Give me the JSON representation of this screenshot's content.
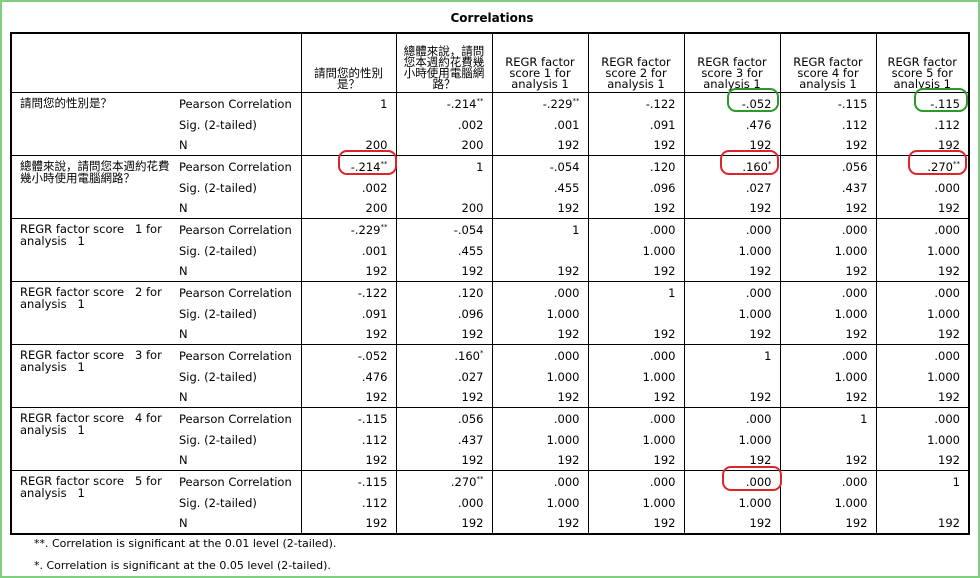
{
  "title": "Correlations",
  "table": {
    "columns": [
      "請問您的性別是？",
      "總體來說，請問您本週約花費幾小時使用電腦網路？",
      "REGR factor score   1 for analysis   1",
      "REGR factor score   2 for analysis   1",
      "REGR factor score   3 for analysis   1",
      "REGR factor score   4 for analysis   1",
      "REGR factor score   5 for analysis   1"
    ],
    "groups": [
      {
        "label": "請問您的性別是？",
        "rows": [
          {
            "stat": "Pearson Correlation",
            "cells": [
              "1",
              {
                "value": "-.214",
                "flag": "**"
              },
              {
                "value": "-.229",
                "flag": "**"
              },
              "-.122",
              "-.052",
              "-.115",
              "-.115"
            ]
          },
          {
            "stat": "Sig. (2-tailed)",
            "cells": [
              null,
              ".002",
              ".001",
              ".091",
              ".476",
              ".112",
              ".112"
            ]
          },
          {
            "stat": "N",
            "cells": [
              "200",
              "200",
              "192",
              "192",
              "192",
              "192",
              "192"
            ]
          }
        ]
      },
      {
        "label": "總體來說，請問您本週約花費幾小時使用電腦網路？",
        "rows": [
          {
            "stat": "Pearson Correlation",
            "cells": [
              {
                "value": "-.214",
                "flag": "**"
              },
              "1",
              "-.054",
              ".120",
              {
                "value": ".160",
                "flag": "*"
              },
              ".056",
              {
                "value": ".270",
                "flag": "**"
              }
            ]
          },
          {
            "stat": "Sig. (2-tailed)",
            "cells": [
              ".002",
              null,
              ".455",
              ".096",
              ".027",
              ".437",
              ".000"
            ]
          },
          {
            "stat": "N",
            "cells": [
              "200",
              "200",
              "192",
              "192",
              "192",
              "192",
              "192"
            ]
          }
        ]
      },
      {
        "label": "REGR factor score   1 for analysis   1",
        "rows": [
          {
            "stat": "Pearson Correlation",
            "cells": [
              {
                "value": "-.229",
                "flag": "**"
              },
              "-.054",
              "1",
              ".000",
              ".000",
              ".000",
              ".000"
            ]
          },
          {
            "stat": "Sig. (2-tailed)",
            "cells": [
              ".001",
              ".455",
              null,
              "1.000",
              "1.000",
              "1.000",
              "1.000"
            ]
          },
          {
            "stat": "N",
            "cells": [
              "192",
              "192",
              "192",
              "192",
              "192",
              "192",
              "192"
            ]
          }
        ]
      },
      {
        "label": "REGR factor score   2 for analysis   1",
        "rows": [
          {
            "stat": "Pearson Correlation",
            "cells": [
              "-.122",
              ".120",
              ".000",
              "1",
              ".000",
              ".000",
              ".000"
            ]
          },
          {
            "stat": "Sig. (2-tailed)",
            "cells": [
              ".091",
              ".096",
              "1.000",
              null,
              "1.000",
              "1.000",
              "1.000"
            ]
          },
          {
            "stat": "N",
            "cells": [
              "192",
              "192",
              "192",
              "192",
              "192",
              "192",
              "192"
            ]
          }
        ]
      },
      {
        "label": "REGR factor score   3 for analysis   1",
        "rows": [
          {
            "stat": "Pearson Correlation",
            "cells": [
              "-.052",
              {
                "value": ".160",
                "flag": "*"
              },
              ".000",
              ".000",
              "1",
              ".000",
              ".000"
            ]
          },
          {
            "stat": "Sig. (2-tailed)",
            "cells": [
              ".476",
              ".027",
              "1.000",
              "1.000",
              null,
              "1.000",
              "1.000"
            ]
          },
          {
            "stat": "N",
            "cells": [
              "192",
              "192",
              "192",
              "192",
              "192",
              "192",
              "192"
            ]
          }
        ]
      },
      {
        "label": "REGR factor score   4 for analysis   1",
        "rows": [
          {
            "stat": "Pearson Correlation",
            "cells": [
              "-.115",
              ".056",
              ".000",
              ".000",
              ".000",
              "1",
              ".000"
            ]
          },
          {
            "stat": "Sig. (2-tailed)",
            "cells": [
              ".112",
              ".437",
              "1.000",
              "1.000",
              "1.000",
              null,
              "1.000"
            ]
          },
          {
            "stat": "N",
            "cells": [
              "192",
              "192",
              "192",
              "192",
              "192",
              "192",
              "192"
            ]
          }
        ]
      },
      {
        "label": "REGR factor score   5 for analysis   1",
        "rows": [
          {
            "stat": "Pearson Correlation",
            "cells": [
              "-.115",
              {
                "value": ".270",
                "flag": "**"
              },
              ".000",
              ".000",
              ".000",
              ".000",
              "1"
            ]
          },
          {
            "stat": "Sig. (2-tailed)",
            "cells": [
              ".112",
              ".000",
              "1.000",
              "1.000",
              "1.000",
              "1.000",
              null
            ]
          },
          {
            "stat": "N",
            "cells": [
              "192",
              "192",
              "192",
              "192",
              "192",
              "192",
              "192"
            ]
          }
        ]
      }
    ]
  },
  "footnotes": [
    "**. Correlation is significant at the 0.01 level (2-tailed).",
    "*. Correlation is significant at the 0.05 level (2-tailed)."
  ]
}
